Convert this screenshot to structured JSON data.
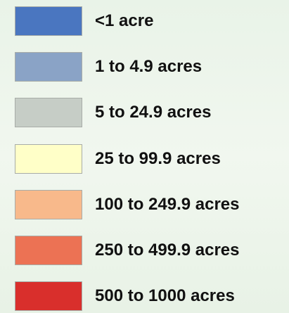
{
  "legend": {
    "items": [
      {
        "label": "<1 acre",
        "color": "#4a76c0"
      },
      {
        "label": "1 to 4.9 acres",
        "color": "#8aa3c6"
      },
      {
        "label": "5 to 24.9 acres",
        "color": "#c6cdc6"
      },
      {
        "label": "25 to 99.9 acres",
        "color": "#ffffc8"
      },
      {
        "label": "100 to 249.9 acres",
        "color": "#f8b98b"
      },
      {
        "label": "250 to 499.9 acres",
        "color": "#ec7254"
      },
      {
        "label": "500 to 1000 acres",
        "color": "#d92f2c"
      }
    ]
  }
}
